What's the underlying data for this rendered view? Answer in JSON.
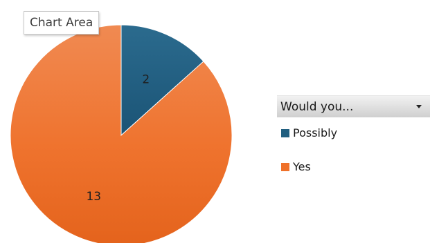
{
  "tooltip": {
    "text": "Chart Area"
  },
  "legend": {
    "filter_label": "Would you..."
  },
  "chart_data": {
    "type": "pie",
    "categories": [
      "Possibly",
      "Yes"
    ],
    "values": [
      2,
      13
    ],
    "colors": [
      "#215f80",
      "#ef712a"
    ],
    "start_angle": "top",
    "direction": "clockwise",
    "legend_position": "right"
  }
}
